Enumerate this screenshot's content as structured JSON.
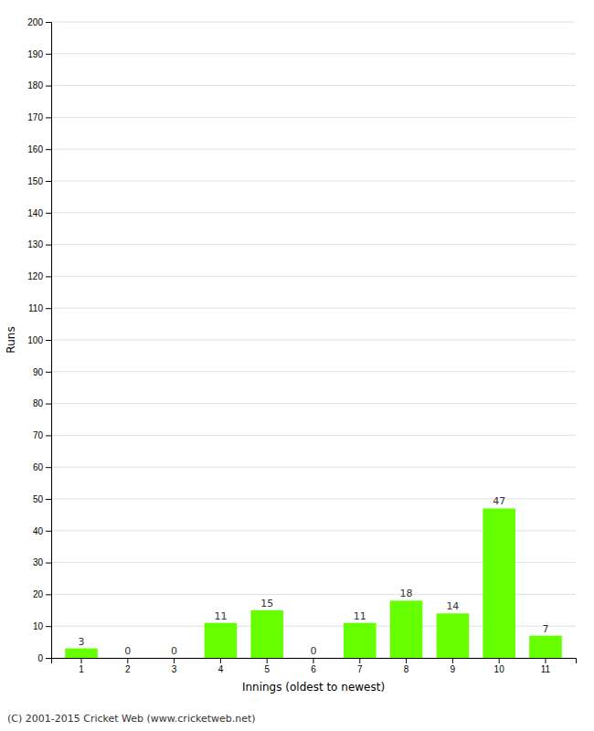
{
  "chart_data": {
    "type": "bar",
    "xlabel": "Innings (oldest to newest)",
    "ylabel": "Runs",
    "categories": [
      "1",
      "2",
      "3",
      "4",
      "5",
      "6",
      "7",
      "8",
      "9",
      "10",
      "11"
    ],
    "values": [
      3,
      0,
      0,
      11,
      15,
      0,
      11,
      18,
      14,
      47,
      7
    ],
    "color": "#66ff00",
    "ylim": [
      0,
      200
    ],
    "yticks": [
      0,
      10,
      20,
      30,
      40,
      50,
      60,
      70,
      80,
      90,
      100,
      110,
      120,
      130,
      140,
      150,
      160,
      170,
      180,
      190,
      200
    ],
    "grid": true,
    "data_labels": true,
    "annotations": [
      "(C) 2001-2015 Cricket Web (www.cricketweb.net)"
    ]
  }
}
